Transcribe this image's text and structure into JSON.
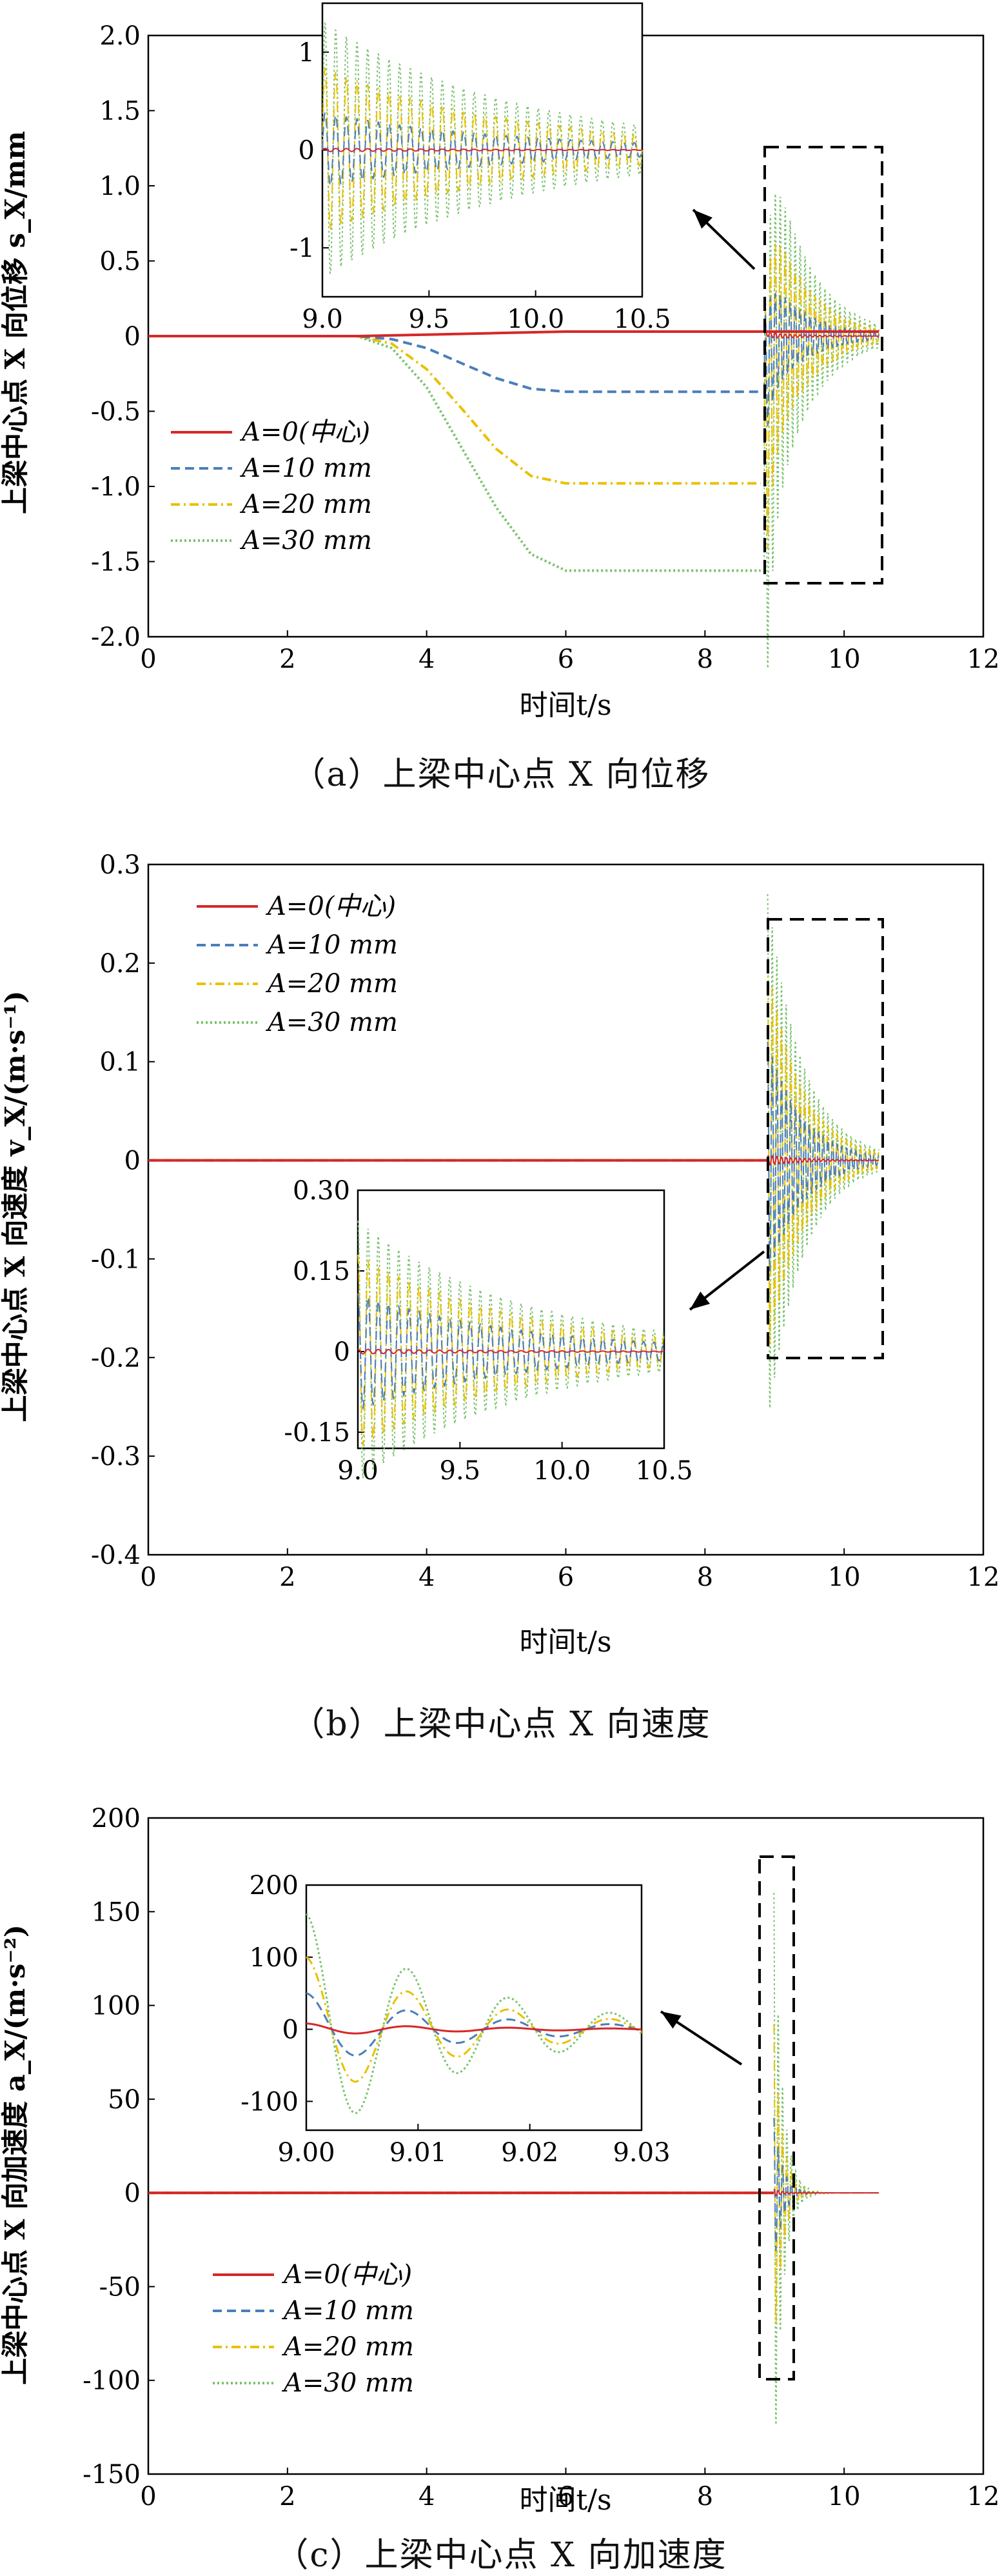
{
  "chart_data": [
    {
      "type": "line",
      "panel": "a",
      "caption": "（a）上梁中心点 X 向位移",
      "xlabel": "时间t/s",
      "ylabel": "上梁中心点 X 向位移 s_X/mm",
      "xlim": [
        0,
        12
      ],
      "ylim": [
        -2.0,
        2.0
      ],
      "xticks": [
        "0",
        "2",
        "4",
        "6",
        "8",
        "10",
        "12"
      ],
      "yticks": [
        "2.0",
        "1.5",
        "1.0",
        "0.5",
        "0",
        "-0.5",
        "-1.0",
        "-1.5",
        "-2.0"
      ],
      "legend": [
        "A=0(中心)",
        "A=10 mm",
        "A=20 mm",
        "A=30 mm"
      ],
      "legend_position": "left",
      "series": [
        {
          "name": "A=0(中心)",
          "color": "#d62728",
          "style": "solid",
          "x": [
            0,
            3.0,
            4.0,
            5.0,
            6.0,
            7.0,
            8.8,
            9.0,
            10.5
          ],
          "y": [
            0,
            0,
            0.01,
            0.02,
            0.03,
            0.03,
            0.03,
            0.03,
            0.03
          ]
        },
        {
          "name": "A=10 mm",
          "color": "#4a7ebb",
          "style": "dashed",
          "x": [
            0,
            3.0,
            3.5,
            4.0,
            4.5,
            5.0,
            5.5,
            6.0,
            7.0,
            8.8
          ],
          "y": [
            0,
            0,
            -0.02,
            -0.08,
            -0.18,
            -0.28,
            -0.35,
            -0.37,
            -0.37,
            -0.37
          ]
        },
        {
          "name": "A=20 mm",
          "color": "#e8c100",
          "style": "dashdot",
          "x": [
            0,
            3.0,
            3.5,
            4.0,
            4.5,
            5.0,
            5.5,
            6.0,
            7.0,
            8.8
          ],
          "y": [
            0,
            0,
            -0.05,
            -0.22,
            -0.48,
            -0.75,
            -0.93,
            -0.98,
            -0.98,
            -0.98
          ]
        },
        {
          "name": "A=30 mm",
          "color": "#77c26a",
          "style": "dotted",
          "x": [
            0,
            3.0,
            3.5,
            4.0,
            4.5,
            5.0,
            5.5,
            6.0,
            7.0,
            8.8
          ],
          "y": [
            0,
            0,
            -0.08,
            -0.34,
            -0.74,
            -1.14,
            -1.45,
            -1.56,
            -1.56,
            -1.56
          ]
        }
      ],
      "inset": {
        "xlim": [
          9.0,
          10.5
        ],
        "ylim": [
          -1.5,
          1.5
        ],
        "xticks": [
          "9.0",
          "9.5",
          "10.0",
          "10.5"
        ],
        "yticks": [
          "1",
          "0",
          "-1"
        ]
      }
    },
    {
      "type": "line",
      "panel": "b",
      "caption": "（b）上梁中心点 X 向速度",
      "xlabel": "时间t/s",
      "ylabel": "上梁中心点 X 向速度 v_X/(m·s⁻¹)",
      "xlim": [
        0,
        12
      ],
      "ylim": [
        -0.4,
        0.3
      ],
      "xticks": [
        "0",
        "2",
        "4",
        "6",
        "8",
        "10",
        "12"
      ],
      "yticks": [
        "0.3",
        "0.2",
        "0.1",
        "0",
        "-0.1",
        "-0.2",
        "-0.3",
        "-0.4"
      ],
      "legend": [
        "A=0(中心)",
        "A=10 mm",
        "A=20 mm",
        "A=30 mm"
      ],
      "legend_position": "top-left",
      "series": [
        {
          "name": "A=0(中心)",
          "color": "#d62728",
          "style": "solid"
        },
        {
          "name": "A=10 mm",
          "color": "#4a7ebb",
          "style": "dashed"
        },
        {
          "name": "A=20 mm",
          "color": "#e8c100",
          "style": "dashdot"
        },
        {
          "name": "A=30 mm",
          "color": "#77c26a",
          "style": "dotted"
        }
      ],
      "inset": {
        "xlim": [
          9.0,
          10.5
        ],
        "ylim": [
          -0.18,
          0.3
        ],
        "xticks": [
          "9.0",
          "9.5",
          "10.0",
          "10.5"
        ],
        "yticks": [
          "0.30",
          "0.15",
          "0",
          "-0.15"
        ]
      }
    },
    {
      "type": "line",
      "panel": "c",
      "caption": "（c）上梁中心点 X 向加速度",
      "xlabel": "时间t/s",
      "ylabel": "上梁中心点 X 向加速度 a_X/(m·s⁻²)",
      "xlim": [
        0,
        12
      ],
      "ylim": [
        -150,
        200
      ],
      "xticks": [
        "0",
        "2",
        "4",
        "6",
        "8",
        "10",
        "12"
      ],
      "yticks": [
        "200",
        "150",
        "100",
        "50",
        "0",
        "-50",
        "-100",
        "-150"
      ],
      "legend": [
        "A=0(中心)",
        "A=10 mm",
        "A=20 mm",
        "A=30 mm"
      ],
      "legend_position": "bottom-left",
      "series": [
        {
          "name": "A=0(中心)",
          "color": "#d62728",
          "style": "solid"
        },
        {
          "name": "A=10 mm",
          "color": "#4a7ebb",
          "style": "dashed"
        },
        {
          "name": "A=20 mm",
          "color": "#e8c100",
          "style": "dashdot"
        },
        {
          "name": "A=30 mm",
          "color": "#77c26a",
          "style": "dotted"
        }
      ],
      "inset": {
        "xlim": [
          9.0,
          9.03
        ],
        "ylim": [
          -140,
          200
        ],
        "xticks": [
          "9.00",
          "9.01",
          "9.02",
          "9.03"
        ],
        "yticks": [
          "200",
          "100",
          "0",
          "-100"
        ]
      }
    }
  ]
}
